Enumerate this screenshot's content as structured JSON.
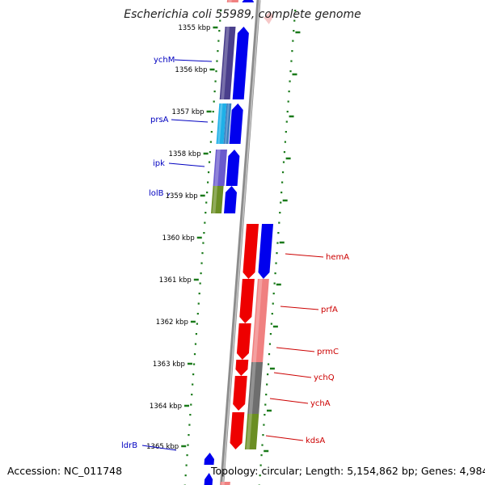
{
  "title": "Escherichia coli 55989, complete genome",
  "footer": {
    "accession": "Accession: NC_011748",
    "summary": "Topology: circular; Length: 5,154,862 bp; Genes: 4,984"
  },
  "colors": {
    "forward_label": "#0000c0",
    "reverse_label": "#cc0000",
    "tick": "#1a7a1a",
    "backbone": "#8c8c8c",
    "blue": "#0000ee",
    "red": "#ee0000",
    "pink": "#f08080",
    "grey": "#6e6e6e",
    "olive": "#6b8e23",
    "slate": "#4a3f8c",
    "violet": "#6a5acd",
    "cyan": "#1fb0e8"
  },
  "ticks": [
    {
      "label": "1355 kbp"
    },
    {
      "label": "1356 kbp"
    },
    {
      "label": "1357 kbp"
    },
    {
      "label": "1358 kbp"
    },
    {
      "label": "1359 kbp"
    },
    {
      "label": "1360 kbp"
    },
    {
      "label": "1361 kbp"
    },
    {
      "label": "1362 kbp"
    },
    {
      "label": "1363 kbp"
    },
    {
      "label": "1364 kbp"
    },
    {
      "label": "1365 kbp"
    }
  ],
  "genes_forward": [
    {
      "name": "ychM"
    },
    {
      "name": "prsA"
    },
    {
      "name": "ipk"
    },
    {
      "name": "lolB"
    },
    {
      "name": "ldrB"
    }
  ],
  "genes_reverse": [
    {
      "name": "hemA"
    },
    {
      "name": "prfA"
    },
    {
      "name": "prmC"
    },
    {
      "name": "ychQ"
    },
    {
      "name": "ychA"
    },
    {
      "name": "kdsA"
    }
  ]
}
